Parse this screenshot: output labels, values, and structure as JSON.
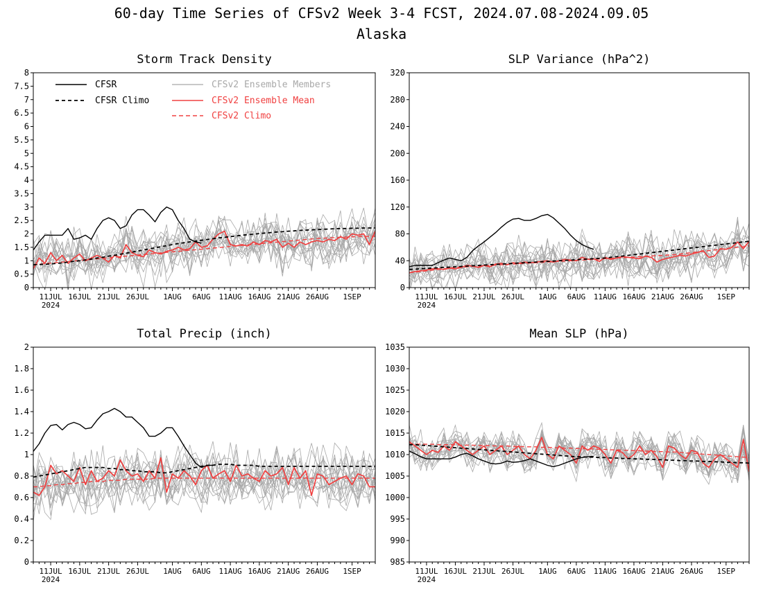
{
  "page": {
    "title_line1": "60-day Time Series of CFSv2 Week 3-4 FCST, 2024.07.08-2024.09.05",
    "title_line2": "Alaska"
  },
  "legend": {
    "cfsr": "CFSR",
    "cfsr_climo": "CFSR Climo",
    "members": "CFSv2 Ensemble Members",
    "ens_mean": "CFSv2 Ensemble Mean",
    "cfsv2_climo": "CFSv2 Climo"
  },
  "colors": {
    "cfsr": "#000000",
    "members": "#a8a8a8",
    "ens_mean": "#f04040",
    "cfsv2_climo": "#f04040"
  },
  "x_ticks": [
    "11JUL",
    "16JUL",
    "21JUL",
    "26JUL",
    "1AUG",
    "6AUG",
    "11AUG",
    "16AUG",
    "21AUG",
    "26AUG",
    "1SEP"
  ],
  "x_year": "2024",
  "chart_data": [
    {
      "type": "line",
      "title": "Storm Track Density",
      "ylim": [
        0,
        8
      ],
      "yticks": [
        "0",
        "0.5",
        "1",
        "1.5",
        "2",
        "2.5",
        "3",
        "3.5",
        "4",
        "4.5",
        "5",
        "5.5",
        "6",
        "6.5",
        "7",
        "7.5",
        "8"
      ],
      "cfsr": [
        1.4,
        1.7,
        1.95,
        1.95,
        1.95,
        1.95,
        2.2,
        1.8,
        1.85,
        1.95,
        1.8,
        2.2,
        2.5,
        2.6,
        2.5,
        2.2,
        2.3,
        2.7,
        2.9,
        2.9,
        2.7,
        2.45,
        2.8,
        3.0,
        2.9,
        2.5,
        2.2,
        1.8,
        1.7,
        1.65
      ],
      "cfsr_climo": [
        0.85,
        0.86,
        0.87,
        0.88,
        0.9,
        0.92,
        0.95,
        0.98,
        1.0,
        1.03,
        1.06,
        1.1,
        1.13,
        1.17,
        1.2,
        1.24,
        1.28,
        1.32,
        1.36,
        1.4,
        1.44,
        1.48,
        1.52,
        1.56,
        1.6,
        1.64,
        1.67,
        1.7,
        1.73,
        1.76,
        1.79,
        1.82,
        1.85,
        1.87,
        1.9,
        1.92,
        1.95,
        1.97,
        1.99,
        2.01,
        2.03,
        2.05,
        2.07,
        2.08,
        2.1,
        2.11,
        2.13,
        2.14,
        2.15,
        2.16,
        2.17,
        2.18,
        2.19,
        2.2,
        2.2,
        2.21,
        2.21,
        2.22,
        2.22,
        2.22
      ],
      "ens_mean": [
        0.7,
        1.1,
        0.9,
        1.3,
        1.0,
        1.2,
        0.9,
        1.1,
        1.25,
        1.0,
        1.1,
        1.2,
        1.1,
        0.95,
        1.2,
        1.1,
        1.6,
        1.3,
        1.2,
        1.15,
        1.4,
        1.3,
        1.25,
        1.35,
        1.4,
        1.5,
        1.4,
        1.45,
        1.7,
        1.5,
        1.55,
        1.8,
        2.0,
        2.1,
        1.6,
        1.55,
        1.6,
        1.55,
        1.7,
        1.6,
        1.75,
        1.7,
        1.8,
        1.5,
        1.65,
        1.5,
        1.7,
        1.6,
        1.7,
        1.75,
        1.7,
        1.8,
        1.75,
        1.9,
        1.8,
        2.0,
        1.95,
        2.0,
        1.6,
        2.1
      ],
      "cfsv2_climo": [
        0.85,
        0.87,
        0.89,
        0.91,
        0.93,
        0.95,
        0.97,
        0.99,
        1.01,
        1.03,
        1.05,
        1.07,
        1.09,
        1.11,
        1.13,
        1.15,
        1.17,
        1.19,
        1.21,
        1.23,
        1.25,
        1.27,
        1.29,
        1.31,
        1.33,
        1.35,
        1.37,
        1.39,
        1.41,
        1.43,
        1.45,
        1.47,
        1.49,
        1.51,
        1.53,
        1.55,
        1.57,
        1.59,
        1.61,
        1.63,
        1.65,
        1.67,
        1.69,
        1.71,
        1.73,
        1.75,
        1.77,
        1.79,
        1.81,
        1.83,
        1.84,
        1.85,
        1.86,
        1.87,
        1.88,
        1.89,
        1.9,
        1.9,
        1.91,
        1.91
      ],
      "members_center": "ens_mean",
      "members_spread": 0.75
    },
    {
      "type": "line",
      "title": "SLP Variance (hPa^2)",
      "ylim": [
        0,
        320
      ],
      "yticks": [
        "0",
        "40",
        "80",
        "120",
        "160",
        "200",
        "240",
        "280",
        "320"
      ],
      "cfsr": [
        31,
        33,
        33,
        33,
        33,
        37,
        41,
        44,
        42,
        40,
        45,
        55,
        62,
        68,
        75,
        82,
        90,
        97,
        102,
        103,
        100,
        100,
        103,
        107,
        109,
        104,
        96,
        88,
        78,
        70,
        64,
        60,
        57
      ],
      "cfsr_climo": [
        27,
        27.5,
        28,
        28.5,
        29,
        29.5,
        30,
        30.5,
        31,
        31.5,
        32,
        32.5,
        33,
        33.5,
        34,
        34.5,
        35,
        35.5,
        36,
        36.5,
        37,
        37.5,
        38,
        38.5,
        39,
        39.5,
        40,
        40.5,
        41,
        41.5,
        42,
        42.5,
        43,
        43.5,
        44,
        45,
        46,
        47,
        48,
        49,
        50,
        51,
        52,
        53,
        54,
        55,
        56,
        57,
        58,
        59,
        60,
        61,
        62,
        63,
        64,
        65,
        66,
        67,
        68,
        69
      ],
      "ens_mean": [
        22,
        24,
        25,
        26,
        28,
        28,
        27,
        29,
        28,
        30,
        33,
        32,
        30,
        33,
        31,
        35,
        36,
        34,
        37,
        36,
        38,
        37,
        38,
        39,
        40,
        38,
        40,
        42,
        41,
        40,
        45,
        42,
        43,
        39,
        45,
        42,
        44,
        46,
        45,
        44,
        43,
        47,
        45,
        38,
        42,
        44,
        46,
        48,
        47,
        50,
        52,
        55,
        45,
        47,
        58,
        57,
        60,
        68,
        58,
        69
      ],
      "cfsv2_climo": [
        22,
        23,
        24,
        25,
        26,
        27,
        28,
        29,
        30,
        30.5,
        31,
        31.5,
        32,
        32.5,
        33,
        33.5,
        34,
        34.5,
        35,
        35.5,
        36,
        36.5,
        37,
        37.5,
        38,
        38.5,
        39,
        39.5,
        40,
        40.5,
        41,
        41.5,
        42,
        42.5,
        43,
        43.5,
        44,
        44.5,
        45,
        45.5,
        46,
        46.5,
        47,
        47.5,
        48,
        48.5,
        49,
        50,
        51,
        52,
        53,
        54,
        55,
        56,
        57,
        58,
        59,
        60,
        61,
        62
      ],
      "members_center": "ens_mean",
      "members_spread": 28
    },
    {
      "type": "line",
      "title": "Total Precip (inch)",
      "ylim": [
        0,
        2
      ],
      "yticks": [
        "0",
        "0.2",
        "0.4",
        "0.6",
        "0.8",
        "1",
        "1.2",
        "1.4",
        "1.6",
        "1.8",
        "2"
      ],
      "cfsr": [
        1.03,
        1.1,
        1.2,
        1.27,
        1.28,
        1.23,
        1.28,
        1.3,
        1.28,
        1.24,
        1.25,
        1.32,
        1.38,
        1.4,
        1.43,
        1.4,
        1.35,
        1.35,
        1.3,
        1.25,
        1.17,
        1.17,
        1.2,
        1.25,
        1.25,
        1.17,
        1.08,
        1.0,
        0.92,
        0.88,
        0.9,
        0.9
      ],
      "cfsr_climo": [
        0.79,
        0.8,
        0.81,
        0.82,
        0.83,
        0.84,
        0.85,
        0.86,
        0.87,
        0.88,
        0.88,
        0.88,
        0.88,
        0.87,
        0.87,
        0.86,
        0.86,
        0.85,
        0.85,
        0.84,
        0.84,
        0.84,
        0.83,
        0.83,
        0.84,
        0.85,
        0.86,
        0.87,
        0.88,
        0.89,
        0.9,
        0.9,
        0.91,
        0.91,
        0.91,
        0.9,
        0.9,
        0.9,
        0.9,
        0.89,
        0.89,
        0.89,
        0.89,
        0.89,
        0.89,
        0.89,
        0.89,
        0.89,
        0.89,
        0.89,
        0.89,
        0.89,
        0.89,
        0.89,
        0.89,
        0.89,
        0.89,
        0.89,
        0.89,
        0.89
      ],
      "ens_mean": [
        0.65,
        0.62,
        0.7,
        0.9,
        0.82,
        0.85,
        0.8,
        0.75,
        0.88,
        0.72,
        0.85,
        0.75,
        0.78,
        0.85,
        0.8,
        0.95,
        0.85,
        0.8,
        0.82,
        0.75,
        0.85,
        0.78,
        0.97,
        0.65,
        0.82,
        0.78,
        0.85,
        0.8,
        0.72,
        0.85,
        0.9,
        0.78,
        0.82,
        0.85,
        0.75,
        0.9,
        0.8,
        0.82,
        0.78,
        0.75,
        0.85,
        0.8,
        0.82,
        0.88,
        0.72,
        0.88,
        0.78,
        0.85,
        0.62,
        0.82,
        0.8,
        0.72,
        0.75,
        0.78,
        0.8,
        0.72,
        0.82,
        0.8,
        0.7,
        0.7
      ],
      "cfsv2_climo": [
        0.7,
        0.7,
        0.71,
        0.71,
        0.72,
        0.72,
        0.73,
        0.73,
        0.74,
        0.74,
        0.75,
        0.75,
        0.75,
        0.76,
        0.76,
        0.76,
        0.77,
        0.77,
        0.77,
        0.77,
        0.77,
        0.78,
        0.78,
        0.78,
        0.78,
        0.78,
        0.78,
        0.78,
        0.78,
        0.78,
        0.78,
        0.78,
        0.78,
        0.78,
        0.78,
        0.78,
        0.78,
        0.78,
        0.78,
        0.78,
        0.78,
        0.78,
        0.78,
        0.78,
        0.78,
        0.78,
        0.78,
        0.78,
        0.78,
        0.78,
        0.78,
        0.78,
        0.78,
        0.78,
        0.78,
        0.78,
        0.78,
        0.78,
        0.78,
        0.78
      ],
      "members_center": "cfsv2_climo",
      "members_spread": 0.22
    },
    {
      "type": "line",
      "title": "Mean SLP (hPa)",
      "ylim": [
        985,
        1035
      ],
      "yticks": [
        "985",
        "990",
        "995",
        "1000",
        "1005",
        "1010",
        "1015",
        "1020",
        "1025",
        "1030",
        "1035"
      ],
      "cfsr": [
        1010.8,
        1010.2,
        1009.5,
        1009,
        1009,
        1009,
        1009,
        1009,
        1009.4,
        1010,
        1010.3,
        1009.7,
        1009,
        1008.5,
        1008,
        1007.8,
        1008,
        1008.5,
        1008.2,
        1008.3,
        1008.6,
        1009,
        1008.5,
        1008,
        1007.5,
        1007.2,
        1007.5,
        1008,
        1008.5,
        1009,
        1009.3,
        1009.5,
        1009.6
      ],
      "cfsr_climo": [
        1012.3,
        1012.3,
        1012.2,
        1012.1,
        1012,
        1011.9,
        1011.8,
        1011.7,
        1011.6,
        1011.5,
        1011.4,
        1011.3,
        1011.2,
        1011.1,
        1011,
        1010.9,
        1010.8,
        1010.7,
        1010.6,
        1010.5,
        1010.4,
        1010.3,
        1010.2,
        1010.1,
        1010,
        1009.9,
        1009.8,
        1009.7,
        1009.6,
        1009.5,
        1009.5,
        1009.4,
        1009.4,
        1009.3,
        1009.3,
        1009.2,
        1009.2,
        1009.1,
        1009.1,
        1009,
        1009,
        1008.9,
        1008.9,
        1008.8,
        1008.8,
        1008.7,
        1008.7,
        1008.6,
        1008.6,
        1008.5,
        1008.5,
        1008.4,
        1008.4,
        1008.3,
        1008.3,
        1008.2,
        1008.2,
        1008.1,
        1008.1,
        1008
      ],
      "ens_mean": [
        1013,
        1012,
        1011,
        1010,
        1011,
        1010.5,
        1012,
        1011,
        1013,
        1012,
        1011,
        1010,
        1011,
        1012,
        1010,
        1011,
        1012,
        1010,
        1011,
        1012,
        1010,
        1009,
        1011,
        1014,
        1010,
        1009,
        1012,
        1011,
        1010,
        1008,
        1012,
        1011,
        1012,
        1011.5,
        1010,
        1008,
        1011,
        1010.5,
        1009,
        1010,
        1012,
        1010,
        1011,
        1009.5,
        1007,
        1012,
        1011.5,
        1010,
        1009,
        1011,
        1010.5,
        1008,
        1007,
        1009,
        1010,
        1009,
        1008,
        1007,
        1013.5,
        1006
      ],
      "cfsv2_climo": [
        1012.4,
        1012.4,
        1012.4,
        1012.4,
        1012.4,
        1012.3,
        1012.3,
        1012.3,
        1012.3,
        1012.2,
        1012.2,
        1012.2,
        1012.1,
        1012.1,
        1012.1,
        1012,
        1012,
        1012,
        1011.9,
        1011.9,
        1011.8,
        1011.8,
        1011.8,
        1011.7,
        1011.7,
        1011.6,
        1011.6,
        1011.5,
        1011.5,
        1011.4,
        1011.4,
        1011.3,
        1011.3,
        1011.2,
        1011.2,
        1011.1,
        1011.1,
        1011,
        1011,
        1010.9,
        1010.9,
        1010.8,
        1010.8,
        1010.7,
        1010.7,
        1010.6,
        1010.6,
        1010.5,
        1010.4,
        1010.3,
        1010.2,
        1010.1,
        1010,
        1009.9,
        1009.8,
        1009.7,
        1009.6,
        1009.5,
        1009.4,
        1009.3
      ],
      "members_center": "ens_mean",
      "members_spread": 3.5
    }
  ]
}
